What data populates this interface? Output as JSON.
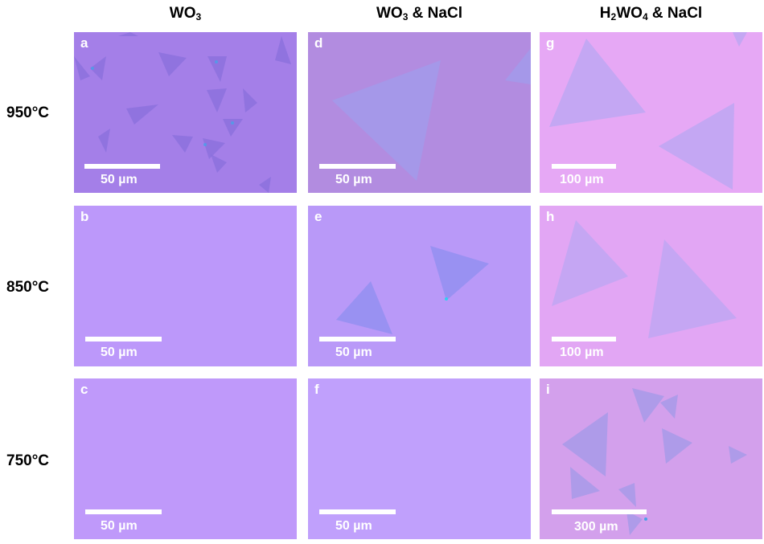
{
  "columns": {
    "col1": {
      "main": "WO",
      "sub": "3",
      "rest": ""
    },
    "col2": {
      "main": "WO",
      "sub": "3",
      "rest": " & NaCl"
    },
    "col3": {
      "prefix": "H",
      "sub1": "2",
      "mid": "WO",
      "sub2": "4",
      "rest": " & NaCl"
    }
  },
  "rows": [
    "950°C",
    "850°C",
    "750°C"
  ],
  "panels": {
    "a": {
      "letter": "a",
      "scale": "50 µm",
      "color": "#a47fe8"
    },
    "b": {
      "letter": "b",
      "scale": "50 µm",
      "color": "#bc98fa"
    },
    "c": {
      "letter": "c",
      "scale": "50 µm",
      "color": "#bf99fa"
    },
    "d": {
      "letter": "d",
      "scale": "50 µm",
      "color": "#b28ce0"
    },
    "e": {
      "letter": "e",
      "scale": "50 µm",
      "color": "#b999f8"
    },
    "f": {
      "letter": "f",
      "scale": "50 µm",
      "color": "#c0a0fc"
    },
    "g": {
      "letter": "g",
      "scale": "100 µm",
      "color": "#e6a8f5"
    },
    "h": {
      "letter": "h",
      "scale": "100 µm",
      "color": "#e2a6f4"
    },
    "i": {
      "letter": "i",
      "scale": "300 µm",
      "color": "#d3a0ec"
    }
  },
  "colors": {
    "flake_purple": "#8a6fdc",
    "flake_blue": "#9aa2f0",
    "flake_pinkgrey": "#c7a4ea",
    "text_white": "#ffffff"
  }
}
